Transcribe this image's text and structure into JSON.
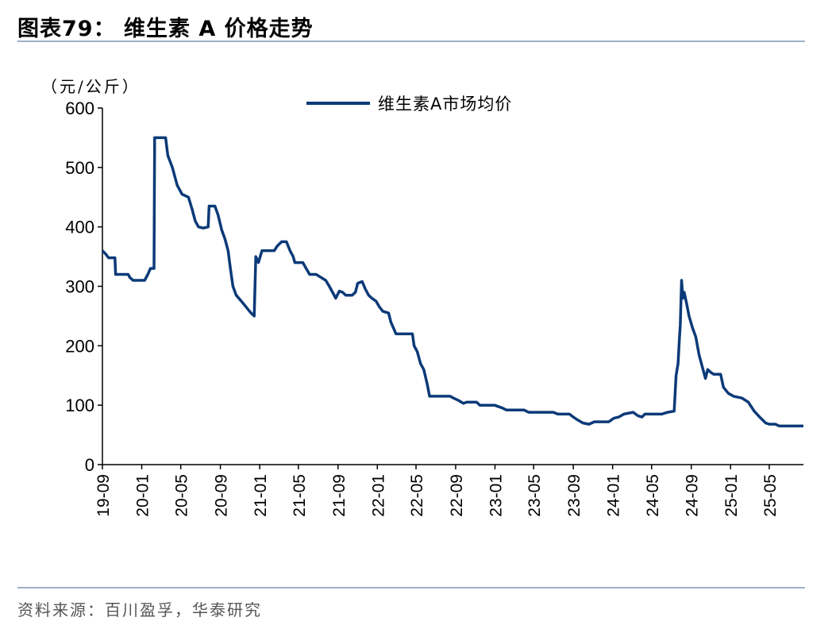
{
  "figure": {
    "title": "图表79：   维生素 A 价格走势",
    "source": "资料来源：百川盈孚，华泰研究"
  },
  "colors": {
    "series": "#0c3a78",
    "axis": "#000000",
    "rule": "#9fb0c8"
  },
  "chart_data": {
    "type": "line",
    "unit_label": "（元/公斤）",
    "ylim": [
      0,
      600
    ],
    "yticks": [
      "0",
      "100",
      "200",
      "300",
      "400",
      "500",
      "600"
    ],
    "xticks": [
      "19-09",
      "20-01",
      "20-05",
      "20-09",
      "21-01",
      "21-05",
      "21-09",
      "22-01",
      "22-05",
      "22-09",
      "23-01",
      "23-05",
      "23-09",
      "24-01",
      "24-05",
      "24-09",
      "25-01",
      "25-05"
    ],
    "x_range": [
      "2019-09-01",
      "2025-08-15"
    ],
    "grid": false,
    "legend_position": "top-center",
    "series": [
      {
        "name": "维生素A市场均价",
        "points": [
          [
            "2019-09-01",
            360
          ],
          [
            "2019-09-10",
            355
          ],
          [
            "2019-09-20",
            348
          ],
          [
            "2019-10-10",
            348
          ],
          [
            "2019-10-12",
            320
          ],
          [
            "2019-11-20",
            320
          ],
          [
            "2019-11-25",
            315
          ],
          [
            "2019-12-05",
            310
          ],
          [
            "2020-01-10",
            310
          ],
          [
            "2020-01-20",
            320
          ],
          [
            "2020-01-28",
            330
          ],
          [
            "2020-02-08",
            330
          ],
          [
            "2020-02-10",
            550
          ],
          [
            "2020-03-15",
            550
          ],
          [
            "2020-03-22",
            520
          ],
          [
            "2020-04-05",
            500
          ],
          [
            "2020-04-20",
            470
          ],
          [
            "2020-05-05",
            455
          ],
          [
            "2020-05-25",
            450
          ],
          [
            "2020-06-05",
            430
          ],
          [
            "2020-06-15",
            410
          ],
          [
            "2020-06-25",
            400
          ],
          [
            "2020-07-10",
            398
          ],
          [
            "2020-07-25",
            400
          ],
          [
            "2020-07-28",
            435
          ],
          [
            "2020-08-15",
            435
          ],
          [
            "2020-08-25",
            420
          ],
          [
            "2020-09-05",
            395
          ],
          [
            "2020-09-15",
            380
          ],
          [
            "2020-09-25",
            360
          ],
          [
            "2020-10-02",
            330
          ],
          [
            "2020-10-10",
            300
          ],
          [
            "2020-10-20",
            285
          ],
          [
            "2020-11-05",
            275
          ],
          [
            "2020-11-20",
            265
          ],
          [
            "2020-12-05",
            255
          ],
          [
            "2020-12-15",
            250
          ],
          [
            "2020-12-20",
            350
          ],
          [
            "2020-12-28",
            340
          ],
          [
            "2021-01-08",
            360
          ],
          [
            "2021-02-15",
            360
          ],
          [
            "2021-02-25",
            368
          ],
          [
            "2021-03-10",
            375
          ],
          [
            "2021-03-25",
            375
          ],
          [
            "2021-04-05",
            360
          ],
          [
            "2021-04-15",
            350
          ],
          [
            "2021-04-20",
            340
          ],
          [
            "2021-05-15",
            340
          ],
          [
            "2021-05-25",
            330
          ],
          [
            "2021-06-05",
            320
          ],
          [
            "2021-06-25",
            320
          ],
          [
            "2021-07-10",
            315
          ],
          [
            "2021-07-25",
            310
          ],
          [
            "2021-08-05",
            300
          ],
          [
            "2021-08-15",
            290
          ],
          [
            "2021-08-25",
            280
          ],
          [
            "2021-09-05",
            292
          ],
          [
            "2021-09-15",
            290
          ],
          [
            "2021-09-25",
            285
          ],
          [
            "2021-10-15",
            285
          ],
          [
            "2021-10-25",
            290
          ],
          [
            "2021-11-01",
            305
          ],
          [
            "2021-11-15",
            308
          ],
          [
            "2021-11-25",
            295
          ],
          [
            "2021-12-05",
            285
          ],
          [
            "2021-12-15",
            280
          ],
          [
            "2021-12-28",
            275
          ],
          [
            "2022-01-08",
            265
          ],
          [
            "2022-01-18",
            258
          ],
          [
            "2022-02-05",
            255
          ],
          [
            "2022-02-12",
            240
          ],
          [
            "2022-02-20",
            230
          ],
          [
            "2022-02-28",
            220
          ],
          [
            "2022-03-15",
            220
          ],
          [
            "2022-04-20",
            220
          ],
          [
            "2022-04-25",
            200
          ],
          [
            "2022-05-05",
            190
          ],
          [
            "2022-05-15",
            170
          ],
          [
            "2022-05-25",
            160
          ],
          [
            "2022-06-05",
            135
          ],
          [
            "2022-06-12",
            115
          ],
          [
            "2022-07-20",
            115
          ],
          [
            "2022-08-15",
            115
          ],
          [
            "2022-08-25",
            112
          ],
          [
            "2022-09-10",
            108
          ],
          [
            "2022-09-25",
            103
          ],
          [
            "2022-10-05",
            105
          ],
          [
            "2022-11-05",
            105
          ],
          [
            "2022-11-15",
            100
          ],
          [
            "2022-12-31",
            100
          ],
          [
            "2023-01-10",
            98
          ],
          [
            "2023-01-25",
            95
          ],
          [
            "2023-02-05",
            92
          ],
          [
            "2023-04-01",
            92
          ],
          [
            "2023-04-15",
            88
          ],
          [
            "2023-07-01",
            88
          ],
          [
            "2023-07-15",
            85
          ],
          [
            "2023-08-20",
            85
          ],
          [
            "2023-09-01",
            80
          ],
          [
            "2023-09-15",
            75
          ],
          [
            "2023-10-01",
            70
          ],
          [
            "2023-10-20",
            68
          ],
          [
            "2023-11-05",
            72
          ],
          [
            "2023-12-20",
            72
          ],
          [
            "2024-01-05",
            78
          ],
          [
            "2024-01-20",
            80
          ],
          [
            "2024-02-05",
            85
          ],
          [
            "2024-03-05",
            88
          ],
          [
            "2024-03-20",
            82
          ],
          [
            "2024-04-01",
            80
          ],
          [
            "2024-04-10",
            85
          ],
          [
            "2024-06-01",
            85
          ],
          [
            "2024-06-20",
            88
          ],
          [
            "2024-07-10",
            90
          ],
          [
            "2024-07-16",
            150
          ],
          [
            "2024-07-22",
            170
          ],
          [
            "2024-07-26",
            210
          ],
          [
            "2024-07-29",
            235
          ],
          [
            "2024-08-02",
            310
          ],
          [
            "2024-08-06",
            280
          ],
          [
            "2024-08-10",
            290
          ],
          [
            "2024-08-18",
            270
          ],
          [
            "2024-08-25",
            250
          ],
          [
            "2024-09-05",
            230
          ],
          [
            "2024-09-15",
            215
          ],
          [
            "2024-09-25",
            185
          ],
          [
            "2024-10-05",
            165
          ],
          [
            "2024-10-15",
            145
          ],
          [
            "2024-10-22",
            160
          ],
          [
            "2024-11-01",
            155
          ],
          [
            "2024-11-10",
            152
          ],
          [
            "2024-12-01",
            152
          ],
          [
            "2024-12-10",
            130
          ],
          [
            "2024-12-25",
            120
          ],
          [
            "2025-01-10",
            115
          ],
          [
            "2025-02-05",
            112
          ],
          [
            "2025-02-25",
            105
          ],
          [
            "2025-03-15",
            90
          ],
          [
            "2025-04-01",
            80
          ],
          [
            "2025-04-20",
            70
          ],
          [
            "2025-05-01",
            68
          ],
          [
            "2025-05-20",
            68
          ],
          [
            "2025-06-01",
            65
          ],
          [
            "2025-08-15",
            65
          ]
        ]
      }
    ]
  }
}
